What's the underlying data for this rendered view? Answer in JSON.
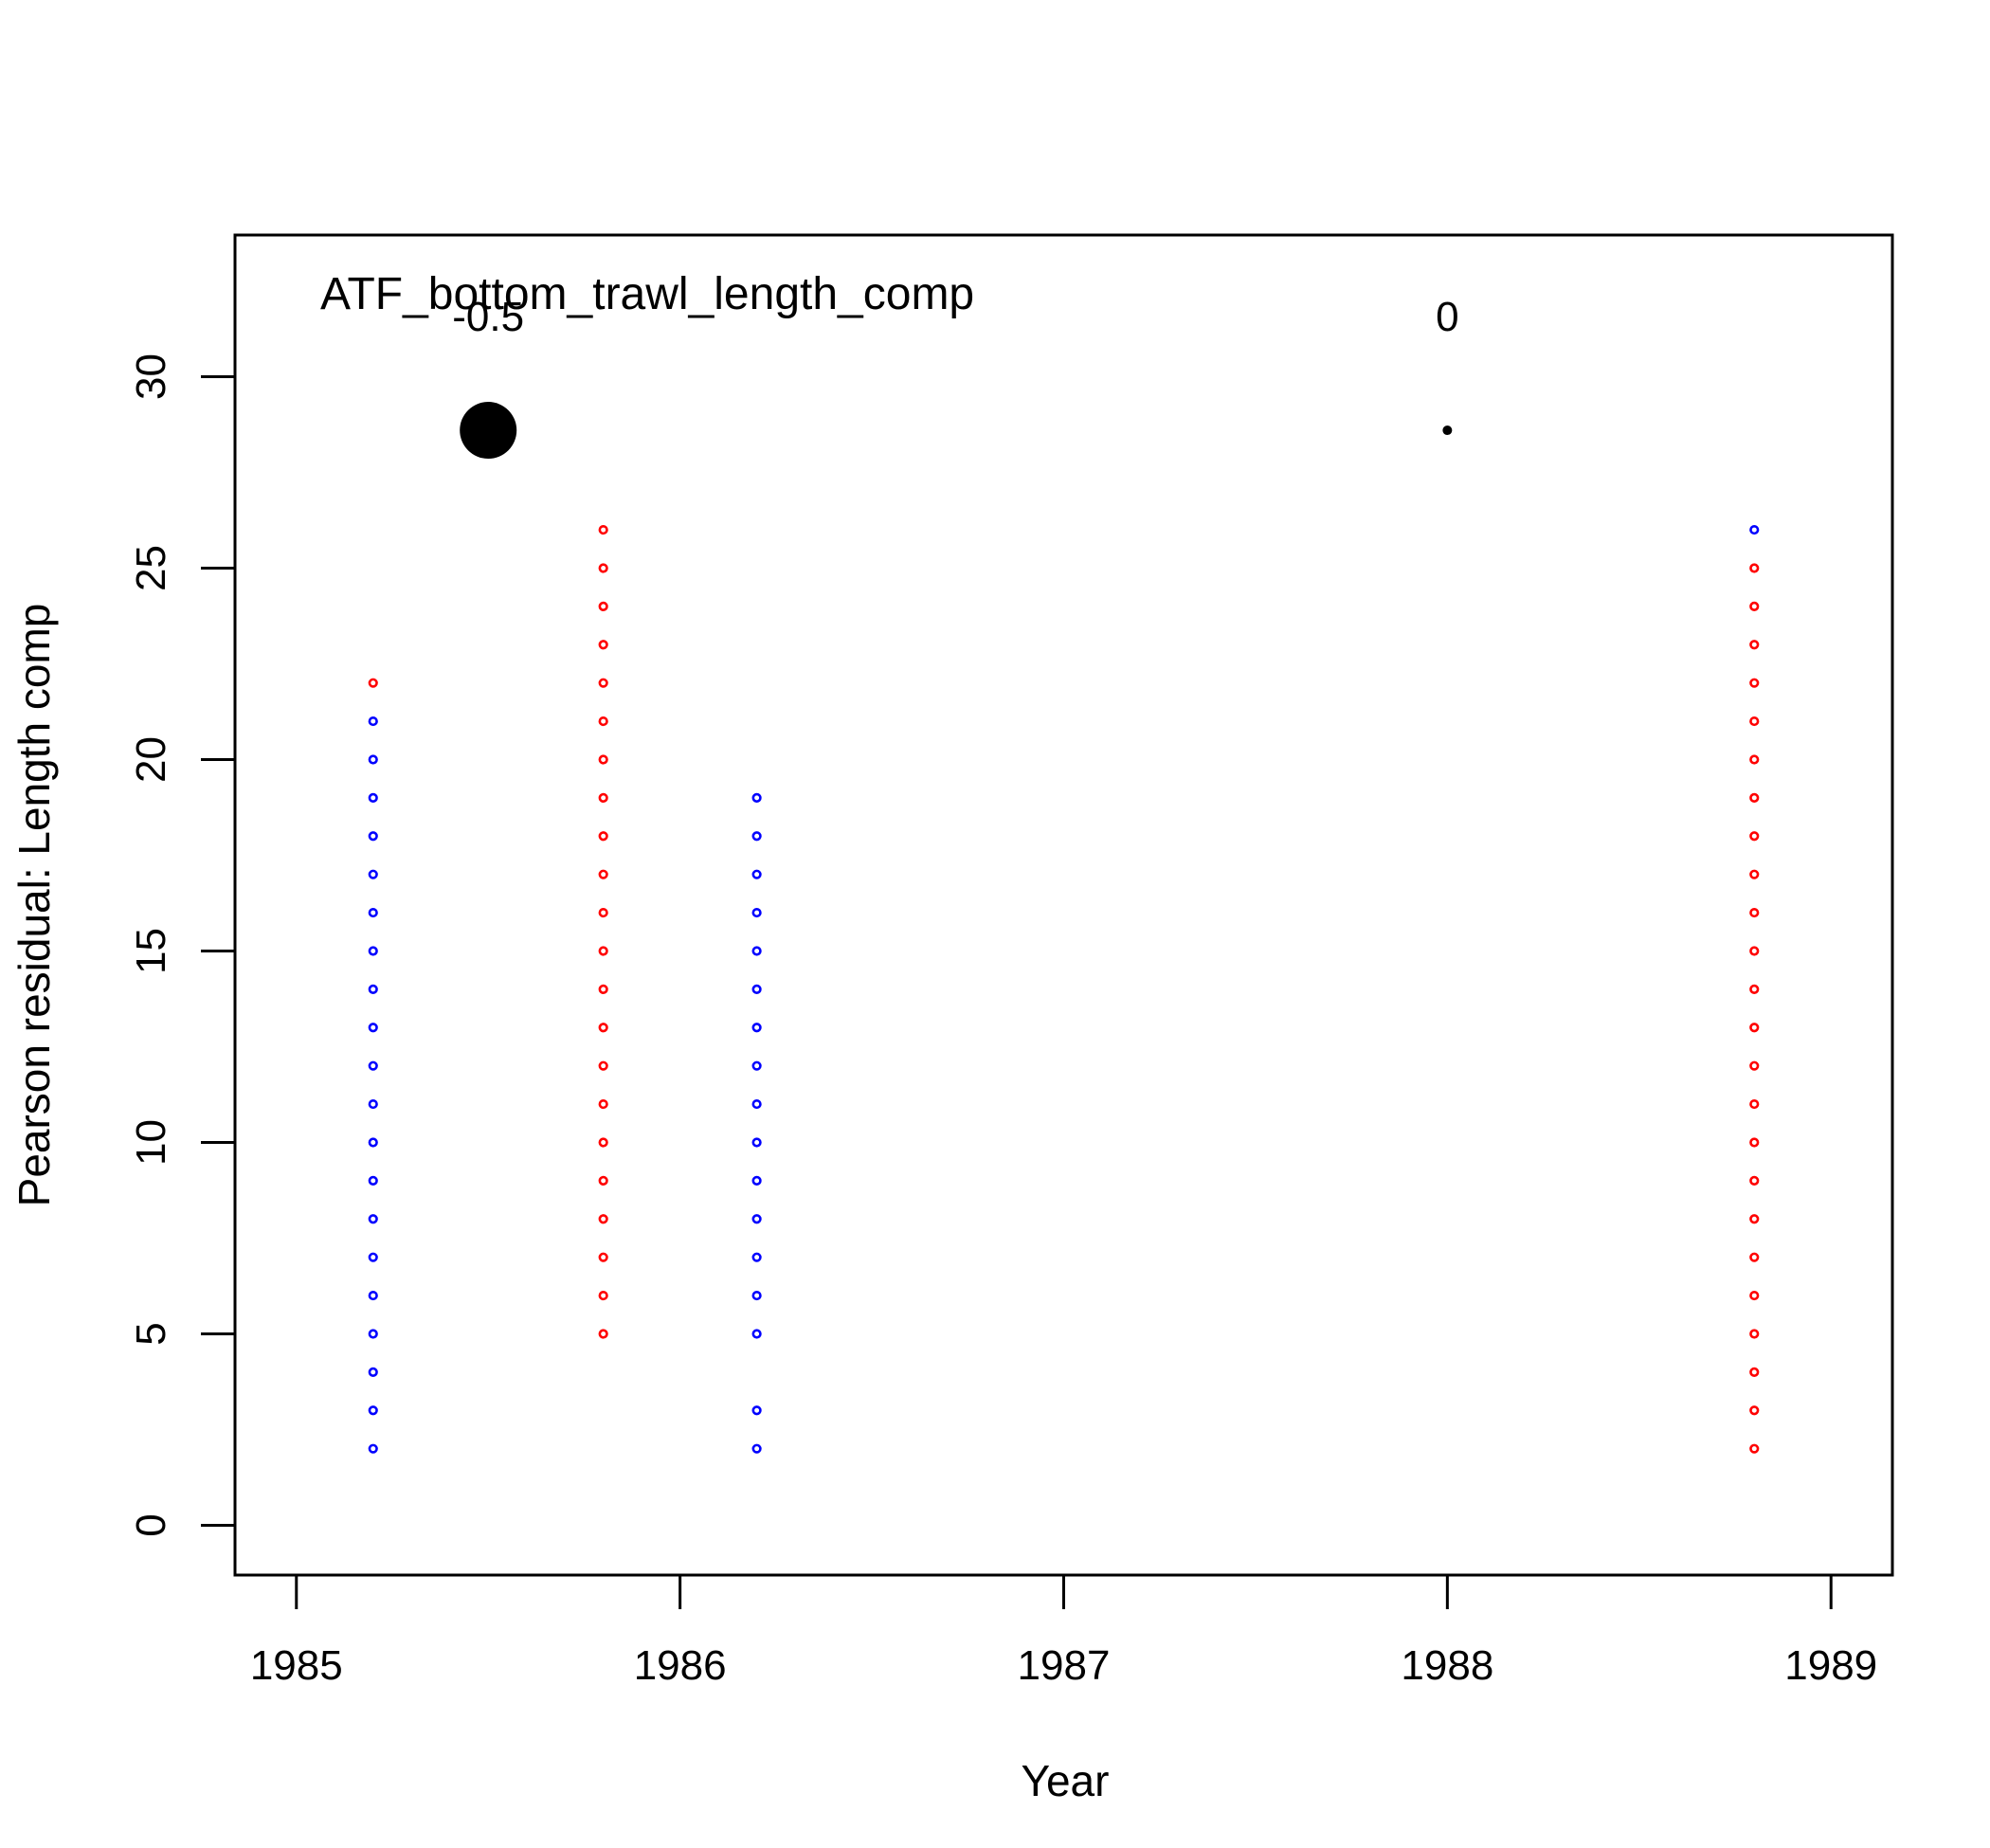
{
  "chart_data": {
    "type": "scatter",
    "title": "ATF_bottom_trawl_length_comp",
    "xlabel": "Year",
    "ylabel": "Pearson residual: Length comp",
    "xlim": [
      1984.84,
      1989.16
    ],
    "ylim": [
      -1.3,
      33.7
    ],
    "xticks": [
      1985,
      1986,
      1987,
      1988,
      1989
    ],
    "yticks": [
      0,
      5,
      10,
      15,
      20,
      25,
      30
    ],
    "grid": false,
    "colors": {
      "positive": "#ff0000",
      "negative": "#0000ff",
      "legend": "#000000"
    },
    "legend": [
      {
        "label": "-0.5",
        "x": 1985.5,
        "y": 28.6,
        "size": "large"
      },
      {
        "label": "0",
        "x": 1988.0,
        "y": 28.6,
        "size": "small"
      }
    ],
    "series": [
      {
        "x": 1985.2,
        "sign": "positive",
        "y": [
          22
        ]
      },
      {
        "x": 1985.2,
        "sign": "negative",
        "y": [
          2,
          3,
          4,
          5,
          6,
          7,
          8,
          9,
          10,
          11,
          12,
          13,
          14,
          15,
          16,
          17,
          18,
          19,
          20,
          21
        ]
      },
      {
        "x": 1985.8,
        "sign": "positive",
        "y": [
          5,
          6,
          7,
          8,
          9,
          10,
          11,
          12,
          13,
          14,
          15,
          16,
          17,
          18,
          19,
          20,
          21,
          22,
          23,
          24,
          25,
          26
        ]
      },
      {
        "x": 1986.2,
        "sign": "negative",
        "y": [
          2,
          3,
          5,
          6,
          7,
          8,
          9,
          10,
          11,
          12,
          13,
          14,
          15,
          16,
          17,
          18,
          19
        ]
      },
      {
        "x": 1988.8,
        "sign": "positive",
        "y": [
          2,
          3,
          4,
          5,
          6,
          7,
          8,
          9,
          10,
          11,
          12,
          13,
          14,
          15,
          16,
          17,
          18,
          19,
          20,
          21,
          22,
          23,
          24,
          25
        ]
      },
      {
        "x": 1988.8,
        "sign": "negative",
        "y": [
          26
        ]
      }
    ]
  }
}
